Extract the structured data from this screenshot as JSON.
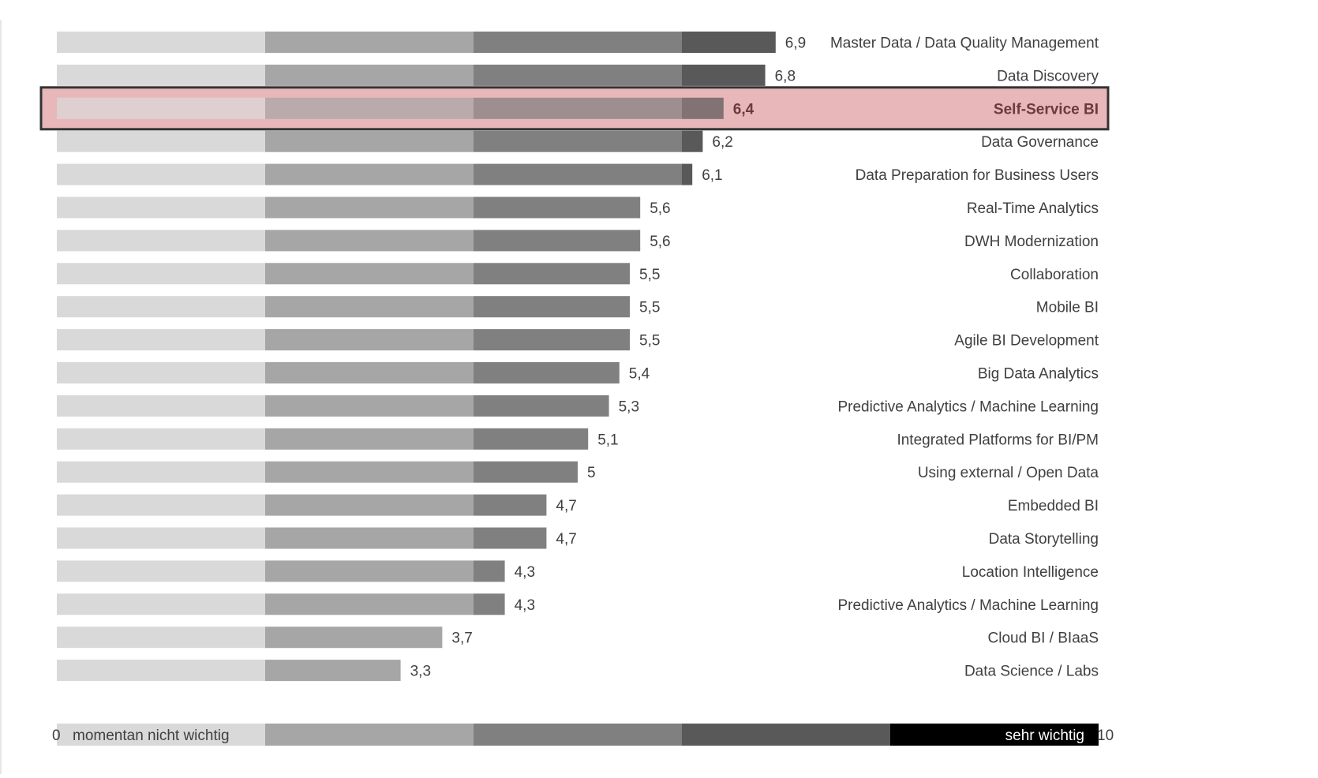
{
  "colors": {
    "band1": "#d9d9d9",
    "band2": "#a6a6a6",
    "band3": "#808080",
    "band4": "#595959",
    "band5": "#000000",
    "highlight_fill": "#e8b7b9",
    "highlight_border": "#333333",
    "highlight_text": "#6b3a3f",
    "text": "#404040"
  },
  "chart_data": {
    "type": "bar",
    "orientation": "horizontal",
    "xlim": [
      0,
      10
    ],
    "band_edges": [
      0,
      2,
      4,
      6,
      8,
      10
    ],
    "highlighted_category": "Self-Service BI",
    "categories": [
      "Master Data / Data Quality Management",
      "Data Discovery",
      "Self-Service BI",
      "Data Governance",
      "Data Preparation for Business Users",
      "Real-Time Analytics",
      "DWH Modernization",
      "Collaboration",
      "Mobile BI",
      "Agile BI Development",
      "Big Data Analytics",
      "Predictive Analytics / Machine Learning",
      "Integrated Platforms for BI/PM",
      "Using external / Open Data",
      "Embedded BI",
      "Data Storytelling",
      "Location Intelligence",
      "Predictive Analytics / Machine Learning",
      "Cloud BI / BIaaS",
      "Data Science / Labs"
    ],
    "values": [
      6.9,
      6.8,
      6.4,
      6.2,
      6.1,
      5.6,
      5.6,
      5.5,
      5.5,
      5.5,
      5.4,
      5.3,
      5.1,
      5,
      4.7,
      4.7,
      4.3,
      4.3,
      3.7,
      3.3
    ],
    "value_labels": [
      "6,9",
      "6,8",
      "6,4",
      "6,2",
      "6,1",
      "5,6",
      "5,6",
      "5,5",
      "5,5",
      "5,5",
      "5,4",
      "5,3",
      "5,1",
      "5",
      "4,7",
      "4,7",
      "4,3",
      "4,3",
      "3,7",
      "3,3"
    ],
    "scale_legend": {
      "min_label": "0",
      "min_text": "momentan nicht wichtig",
      "max_text": "sehr wichtig",
      "max_label": "10"
    }
  }
}
